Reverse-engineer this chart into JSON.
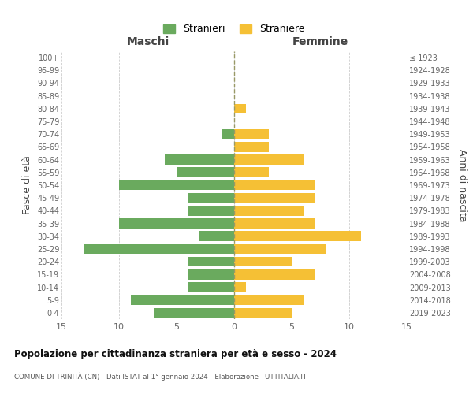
{
  "age_groups": [
    "0-4",
    "5-9",
    "10-14",
    "15-19",
    "20-24",
    "25-29",
    "30-34",
    "35-39",
    "40-44",
    "45-49",
    "50-54",
    "55-59",
    "60-64",
    "65-69",
    "70-74",
    "75-79",
    "80-84",
    "85-89",
    "90-94",
    "95-99",
    "100+"
  ],
  "birth_years": [
    "2019-2023",
    "2014-2018",
    "2009-2013",
    "2004-2008",
    "1999-2003",
    "1994-1998",
    "1989-1993",
    "1984-1988",
    "1979-1983",
    "1974-1978",
    "1969-1973",
    "1964-1968",
    "1959-1963",
    "1954-1958",
    "1949-1953",
    "1944-1948",
    "1939-1943",
    "1934-1938",
    "1929-1933",
    "1924-1928",
    "≤ 1923"
  ],
  "maschi": [
    7,
    9,
    4,
    4,
    4,
    13,
    3,
    10,
    4,
    4,
    10,
    5,
    6,
    0,
    1,
    0,
    0,
    0,
    0,
    0,
    0
  ],
  "femmine": [
    5,
    6,
    1,
    7,
    5,
    8,
    11,
    7,
    6,
    7,
    7,
    3,
    6,
    3,
    3,
    0,
    1,
    0,
    0,
    0,
    0
  ],
  "color_maschi": "#6aaa5e",
  "color_femmine": "#f5c035",
  "title": "Popolazione per cittadinanza straniera per età e sesso - 2024",
  "subtitle": "COMUNE DI TRINITÀ (CN) - Dati ISTAT al 1° gennaio 2024 - Elaborazione TUTTITALIA.IT",
  "xlabel_left": "Maschi",
  "xlabel_right": "Femmine",
  "ylabel_left": "Fasce di età",
  "ylabel_right": "Anni di nascita",
  "legend_maschi": "Stranieri",
  "legend_femmine": "Straniere",
  "xlim": 15,
  "background_color": "#ffffff",
  "grid_color": "#cccccc",
  "dashed_line_color": "#999966"
}
